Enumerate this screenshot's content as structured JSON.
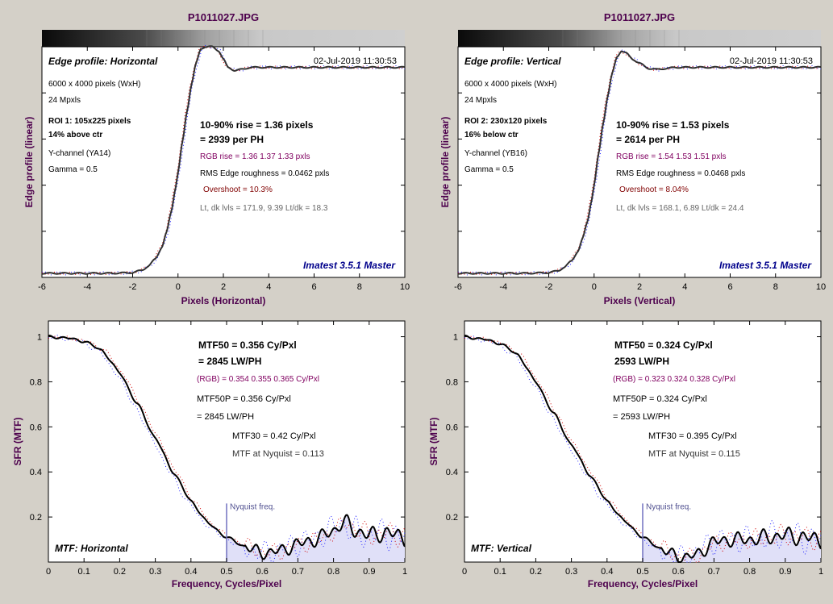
{
  "colors": {
    "background": "#d4d0c8",
    "title": "#4d004d",
    "axis_label": "#4d004d",
    "watermark": "#00008b",
    "rgb_text": "#800060",
    "overshoot_text": "#800000",
    "gray_text": "#666666",
    "mtf_fill": "#e0e0f8",
    "nyquist_line": "#7070c0",
    "nyquist_text": "#505090",
    "red_channel": "#d00000",
    "blue_channel": "#2020ff",
    "main_curve": "#000000"
  },
  "panels": [
    {
      "title": "P1011027.JPG",
      "edge": {
        "heading": "Edge profile: Horizontal",
        "timestamp": "02-Jul-2019 11:30:53",
        "info": [
          "6000 x 4000 pixels (WxH)",
          "24 Mpxls"
        ],
        "roi": [
          "ROI 1:  105x225 pixels",
          "14% above ctr"
        ],
        "channel": [
          "Y-channel  (YA14)",
          "Gamma = 0.5"
        ],
        "rise": [
          "10-90% rise = 1.36 pixels",
          "= 2939 per PH"
        ],
        "rgb_rise": "RGB rise = 1.36  1.37  1.33 pxls",
        "roughness": "RMS Edge roughness = 0.0462 pxls",
        "overshoot": "Overshoot = 10.3%",
        "levels": "Lt, dk lvls = 171.9, 9.39   Lt/dk = 18.3",
        "watermark": "Imatest 3.5.1 Master",
        "ylabel": "Edge profile (linear)",
        "xlabel": "Pixels (Horizontal)"
      },
      "mtf": {
        "mtf50": [
          "MTF50 = 0.356 Cy/Pxl",
          "= 2845 LW/PH"
        ],
        "rgb": "(RGB) = 0.354  0.355  0.365 Cy/Pxl",
        "mtf50p": [
          "MTF50P = 0.356 Cy/Pxl",
          "= 2845 LW/PH"
        ],
        "mtf30": "MTF30 = 0.42 Cy/Pxl",
        "nyq": "MTF at Nyquist = 0.113",
        "nyq_label": "Nyquist freq.",
        "label": "MTF: Horizontal",
        "ylabel": "SFR (MTF)",
        "xlabel": "Frequency, Cycles/Pixel"
      }
    },
    {
      "title": "P1011027.JPG",
      "edge": {
        "heading": "Edge profile: Vertical",
        "timestamp": "02-Jul-2019 11:30:53",
        "info": [
          "6000 x 4000 pixels (WxH)",
          "24 Mpxls"
        ],
        "roi": [
          "ROI 2:  230x120 pixels",
          "16% below ctr"
        ],
        "channel": [
          "Y-channel  (YB16)",
          "Gamma = 0.5"
        ],
        "rise": [
          "10-90% rise = 1.53 pixels",
          "= 2614 per PH"
        ],
        "rgb_rise": "RGB rise = 1.54  1.53  1.51 pxls",
        "roughness": "RMS Edge roughness = 0.0468 pxls",
        "overshoot": "Overshoot = 8.04%",
        "levels": "Lt, dk lvls = 168.1, 6.89   Lt/dk = 24.4",
        "watermark": "Imatest 3.5.1 Master",
        "ylabel": "Edge profile (linear)",
        "xlabel": "Pixels (Vertical)"
      },
      "mtf": {
        "mtf50": [
          "MTF50 = 0.324 Cy/Pxl",
          "2593 LW/PH"
        ],
        "rgb": "(RGB) = 0.323  0.324  0.328 Cy/Pxl",
        "mtf50p": [
          "MTF50P = 0.324 Cy/Pxl",
          "= 2593 LW/PH"
        ],
        "mtf30": "MTF30 = 0.395 Cy/Pxl",
        "nyq": "MTF at Nyquist = 0.115",
        "nyq_label": "Nyquist freq.",
        "label": "MTF: Vertical",
        "ylabel": "SFR (MTF)",
        "xlabel": "Frequency, Cycles/Pixel"
      }
    }
  ],
  "chart_data": [
    {
      "type": "line",
      "title": "P1011027.JPG",
      "xlabel": "Pixels (Horizontal)",
      "ylabel": "Edge profile (linear)",
      "xlim": [
        -6,
        10
      ],
      "ylim": [
        -0.02,
        1.1
      ],
      "xticks": [
        -6,
        -4,
        -2,
        0,
        2,
        4,
        6,
        8,
        10
      ],
      "series": [
        {
          "x": [
            -6,
            -3,
            -2,
            -1.6,
            -1.3,
            -1,
            -0.7,
            -0.5,
            -0.3,
            -0.1,
            0,
            0.2,
            0.4,
            0.6,
            0.8,
            1.0,
            1.2,
            1.5,
            1.8,
            2.0,
            2.2,
            2.5,
            2.8,
            3.2,
            3.6,
            4,
            5,
            6,
            8,
            10
          ],
          "values": [
            0,
            0,
            0.003,
            0.015,
            0.035,
            0.07,
            0.13,
            0.2,
            0.3,
            0.42,
            0.49,
            0.64,
            0.79,
            0.92,
            1.02,
            1.09,
            1.1,
            1.1,
            1.08,
            1.04,
            1.0,
            0.985,
            0.99,
            1.0,
            1.0,
            1.0,
            1.0,
            1.0,
            1.0,
            1.0
          ]
        }
      ]
    },
    {
      "type": "line",
      "title": "P1011027.JPG",
      "xlabel": "Pixels (Vertical)",
      "ylabel": "Edge profile (linear)",
      "xlim": [
        -6,
        10
      ],
      "ylim": [
        -0.02,
        1.1
      ],
      "xticks": [
        -6,
        -4,
        -2,
        0,
        2,
        4,
        6,
        8,
        10
      ],
      "series": [
        {
          "x": [
            -6,
            -3,
            -2,
            -1.6,
            -1.3,
            -1,
            -0.7,
            -0.5,
            -0.3,
            -0.1,
            0,
            0.2,
            0.4,
            0.6,
            0.8,
            1.0,
            1.2,
            1.4,
            1.7,
            2.0,
            2.4,
            2.8,
            3.2,
            3.6,
            4,
            5,
            6,
            8,
            10
          ],
          "values": [
            0,
            0,
            0.003,
            0.012,
            0.03,
            0.06,
            0.11,
            0.17,
            0.25,
            0.36,
            0.43,
            0.58,
            0.73,
            0.86,
            0.97,
            1.05,
            1.08,
            1.07,
            1.04,
            1.02,
            0.995,
            0.99,
            0.995,
            1.0,
            1.0,
            1.0,
            1.0,
            1.0,
            1.0
          ]
        }
      ]
    },
    {
      "type": "line",
      "xlabel": "Frequency, Cycles/Pixel",
      "ylabel": "SFR (MTF)",
      "xlim": [
        0,
        1
      ],
      "ylim": [
        0,
        1.07
      ],
      "xticks": [
        0,
        0.1,
        0.2,
        0.3,
        0.4,
        0.5,
        0.6,
        0.7,
        0.8,
        0.9,
        1
      ],
      "yticks": [
        0.2,
        0.4,
        0.6,
        0.8,
        1
      ],
      "series": [
        {
          "x": [
            0,
            0.05,
            0.1,
            0.15,
            0.2,
            0.25,
            0.3,
            0.35,
            0.4,
            0.45,
            0.5,
            0.55,
            0.6,
            0.65,
            0.7,
            0.75,
            0.8,
            0.83,
            0.86,
            0.9,
            0.95,
            1.0
          ],
          "values": [
            1.0,
            0.995,
            0.98,
            0.94,
            0.84,
            0.7,
            0.55,
            0.4,
            0.27,
            0.17,
            0.11,
            0.07,
            0.04,
            0.05,
            0.08,
            0.1,
            0.14,
            0.18,
            0.14,
            0.12,
            0.13,
            0.11
          ]
        }
      ]
    },
    {
      "type": "line",
      "xlabel": "Frequency, Cycles/Pixel",
      "ylabel": "SFR (MTF)",
      "xlim": [
        0,
        1
      ],
      "ylim": [
        0,
        1.07
      ],
      "xticks": [
        0,
        0.1,
        0.2,
        0.3,
        0.4,
        0.5,
        0.6,
        0.7,
        0.8,
        0.9,
        1
      ],
      "yticks": [
        0.2,
        0.4,
        0.6,
        0.8,
        1
      ],
      "series": [
        {
          "x": [
            0,
            0.05,
            0.1,
            0.15,
            0.2,
            0.25,
            0.3,
            0.35,
            0.4,
            0.45,
            0.5,
            0.55,
            0.6,
            0.65,
            0.7,
            0.75,
            0.8,
            0.85,
            0.9,
            0.95,
            1.0
          ],
          "values": [
            1.0,
            0.99,
            0.97,
            0.92,
            0.8,
            0.66,
            0.52,
            0.39,
            0.27,
            0.18,
            0.11,
            0.06,
            0.02,
            0.03,
            0.09,
            0.1,
            0.1,
            0.11,
            0.12,
            0.11,
            0.1
          ]
        }
      ]
    }
  ]
}
